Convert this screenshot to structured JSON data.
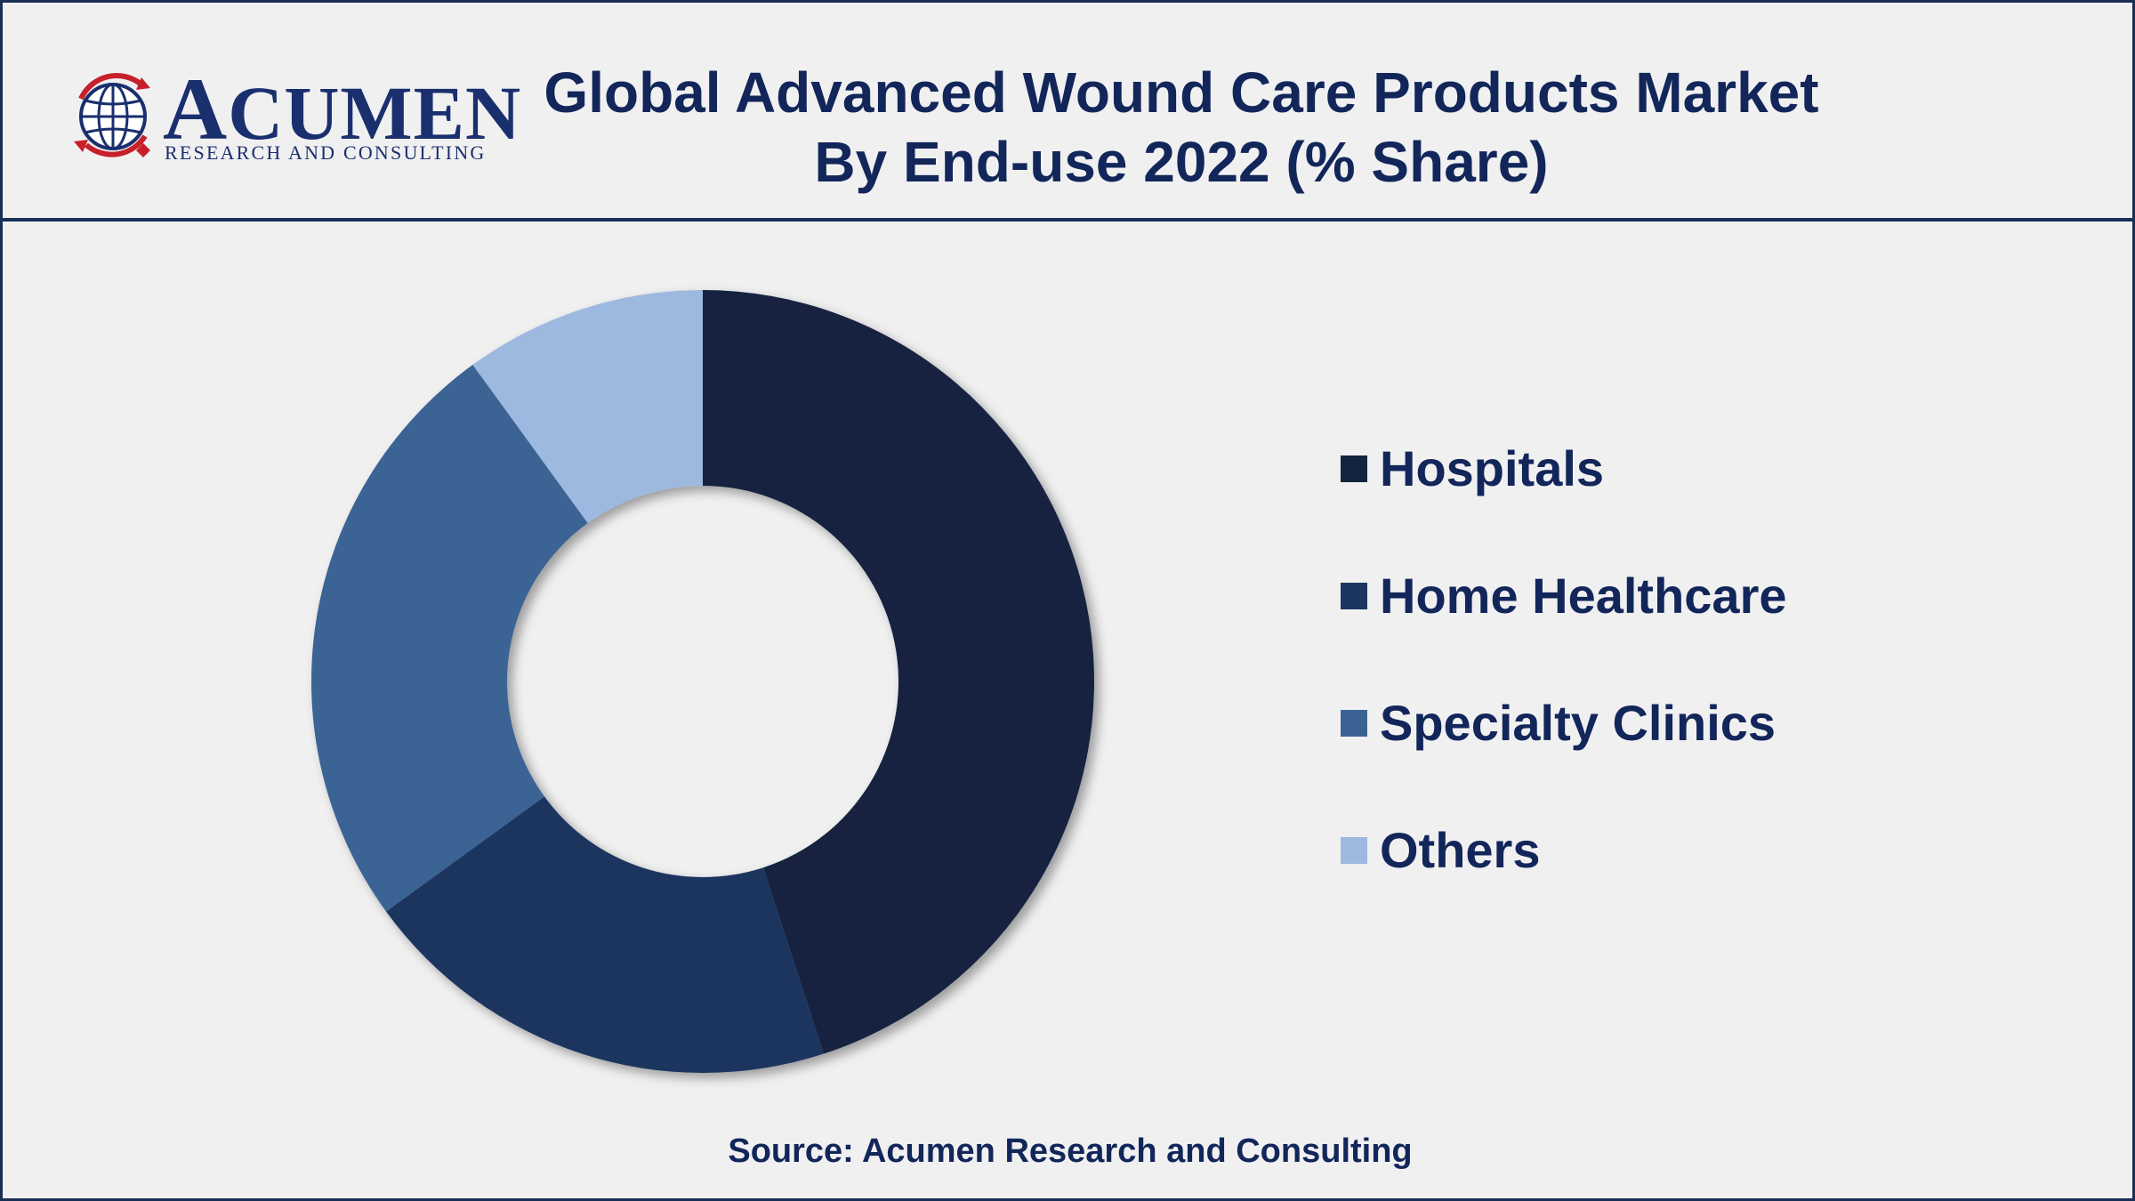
{
  "logo": {
    "word_first": "A",
    "word_rest": "CUMEN",
    "subtitle": "RESEARCH AND CONSULTING"
  },
  "colors": {
    "frame": "#1a2f57",
    "title": "#12265a",
    "background": "#f0f0f1"
  },
  "chart_data": {
    "type": "pie",
    "donut": true,
    "title_line1": "Global Advanced Wound Care Products Market",
    "title_line2": "By End-use 2022 (% Share)",
    "legend_position": "right",
    "series": [
      {
        "name": "Hospitals",
        "value": 45,
        "color": "#13243f"
      },
      {
        "name": "Home Healthcare",
        "value": 20,
        "color": "#1b365f"
      },
      {
        "name": "Specialty Clinics",
        "value": 25,
        "color": "#3a6394"
      },
      {
        "name": "Others",
        "value": 10,
        "color": "#9db9df"
      }
    ]
  },
  "source": "Source: Acumen Research and Consulting"
}
